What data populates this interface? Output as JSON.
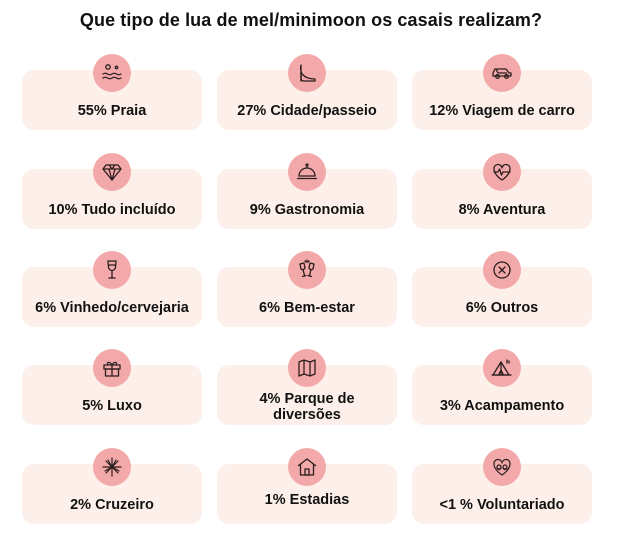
{
  "title": "Que tipo de lua de mel/minimoon os casais realizam?",
  "colors": {
    "card_bg": "#fdf0ea",
    "icon_bg": "#f3a9a9",
    "icon_stroke": "#2a1e1e",
    "text": "#111111"
  },
  "items": [
    {
      "label": "55% Praia",
      "icon": "beach-icon"
    },
    {
      "label": "27% Cidade/passeio",
      "icon": "high-heel-icon"
    },
    {
      "label": "12% Viagem de carro",
      "icon": "car-icon"
    },
    {
      "label": "10% Tudo incluído",
      "icon": "diamond-icon"
    },
    {
      "label": "9% Gastronomia",
      "icon": "cloche-icon"
    },
    {
      "label": "8% Aventura",
      "icon": "heartbeat-icon"
    },
    {
      "label": "6% Vinhedo/cervejaria",
      "icon": "wine-glass-icon"
    },
    {
      "label": "6% Bem-estar",
      "icon": "champagne-toast-icon"
    },
    {
      "label": "6% Outros",
      "icon": "circle-x-icon"
    },
    {
      "label": "5% Luxo",
      "icon": "gift-icon"
    },
    {
      "label": "4% Parque de diversões",
      "icon": "map-icon"
    },
    {
      "label": "3% Acampamento",
      "icon": "tent-icon"
    },
    {
      "label": "2% Cruzeiro",
      "icon": "fireworks-icon"
    },
    {
      "label": "1% Estadias",
      "icon": "house-icon"
    },
    {
      "label": "<1 % Voluntariado",
      "icon": "heart-hands-icon"
    }
  ]
}
